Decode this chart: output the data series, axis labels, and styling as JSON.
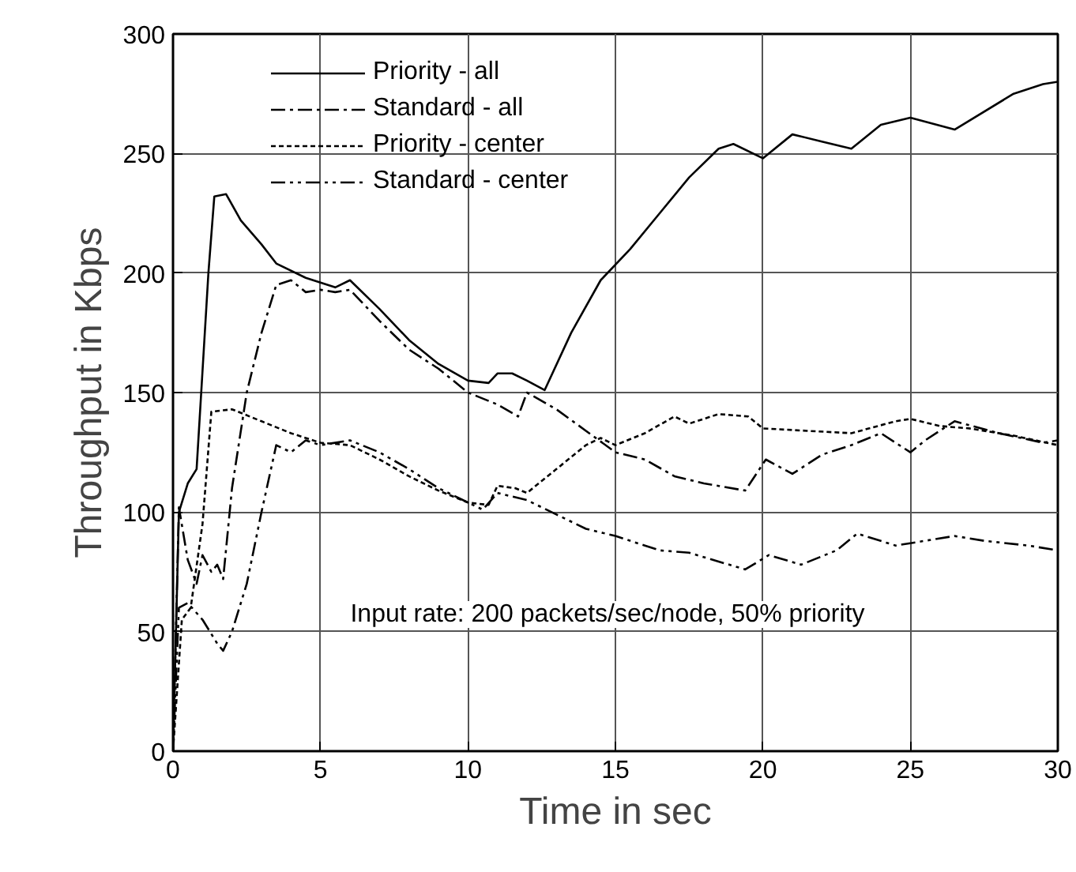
{
  "chart_data": {
    "type": "line",
    "xlabel": "Time in sec",
    "ylabel": "Throughput in Kbps",
    "annotations": [
      "Input rate: 200 packets/sec/node, 50% priority"
    ],
    "xlim": [
      0,
      30
    ],
    "xticks": [
      0,
      5,
      10,
      15,
      20,
      25,
      30
    ],
    "ylim": [
      0,
      300
    ],
    "yticks": [
      0,
      50,
      100,
      150,
      200,
      250,
      300
    ],
    "grid": true,
    "legend": "top left",
    "series": [
      {
        "name": "Priority - all",
        "color": "#000000",
        "line_style": "solid",
        "x": [
          0,
          0.2,
          0.5,
          0.8,
          1.2,
          1.4,
          1.8,
          2.3,
          3,
          3.5,
          4.5,
          5.5,
          6,
          7,
          8,
          9,
          10,
          10.7,
          11,
          11.5,
          12,
          12.6,
          13.5,
          14.5,
          15.5,
          16.5,
          17.5,
          18.5,
          19,
          20,
          21,
          22,
          23,
          24,
          25,
          26.5,
          28.5,
          29.5,
          30
        ],
        "values": [
          0,
          100,
          112,
          118,
          200,
          232,
          233,
          222,
          212,
          204,
          198,
          194,
          197,
          185,
          172,
          162,
          155,
          154,
          158,
          158,
          155,
          151,
          175,
          197,
          210,
          225,
          240,
          252,
          254,
          248,
          258,
          255,
          252,
          262,
          265,
          260,
          275,
          279,
          280
        ]
      },
      {
        "name": "Standard - all",
        "color": "#000000",
        "line_style": "dashdot",
        "x": [
          0,
          0.2,
          0.5,
          0.8,
          1,
          1.3,
          1.5,
          1.7,
          2,
          2.5,
          3,
          3.5,
          4,
          4.5,
          5,
          5.5,
          6,
          7,
          8,
          9,
          10,
          11,
          11.7,
          12,
          13,
          14,
          15,
          16,
          17,
          18,
          19.4,
          20.1,
          21,
          22,
          23,
          24,
          25,
          25.5,
          26.5,
          28,
          29.5,
          30
        ],
        "values": [
          0,
          102,
          80,
          70,
          82,
          75,
          78,
          72,
          110,
          150,
          175,
          195,
          197,
          192,
          193,
          192,
          193,
          180,
          168,
          160,
          150,
          145,
          140,
          150,
          143,
          134,
          125,
          122,
          115,
          112,
          109,
          122,
          116,
          124,
          128,
          133,
          125,
          130,
          138,
          133,
          129,
          130
        ]
      },
      {
        "name": "Priority - center",
        "color": "#000000",
        "line_style": "dotted",
        "x": [
          0,
          0.3,
          0.6,
          1,
          1.3,
          2,
          3,
          4,
          5,
          6,
          7,
          8,
          9,
          10,
          10.7,
          11,
          11.6,
          12,
          13,
          14,
          14.5,
          15,
          16,
          17,
          17.5,
          18.5,
          19.5,
          20,
          21.5,
          23,
          24.5,
          25,
          26,
          27,
          28.5,
          30
        ],
        "values": [
          0,
          55,
          60,
          95,
          142,
          143,
          138,
          133,
          129,
          128,
          122,
          115,
          109,
          104,
          103,
          111,
          110,
          108,
          118,
          128,
          131,
          128,
          133,
          140,
          137,
          141,
          140,
          135,
          134,
          133,
          138,
          139,
          136,
          135,
          132,
          128
        ]
      },
      {
        "name": "Standard - center",
        "color": "#000000",
        "line_style": "dashdotdot",
        "x": [
          0,
          0.2,
          0.5,
          1,
          1.5,
          1.7,
          2,
          2.5,
          3,
          3.5,
          4,
          4.5,
          5,
          6,
          7,
          8,
          9,
          10,
          10.5,
          11,
          12,
          13,
          14,
          15,
          16,
          16.5,
          17.5,
          19.4,
          20.2,
          21.3,
          22.5,
          23.2,
          24.5,
          25,
          26.5,
          27.5,
          29,
          30
        ],
        "values": [
          0,
          60,
          62,
          55,
          45,
          42,
          50,
          70,
          100,
          128,
          125,
          130,
          128,
          130,
          125,
          118,
          110,
          104,
          101,
          108,
          105,
          99,
          93,
          90,
          86,
          84,
          83,
          76,
          82,
          78,
          84,
          91,
          86,
          87,
          90,
          88,
          86,
          84
        ]
      }
    ]
  }
}
